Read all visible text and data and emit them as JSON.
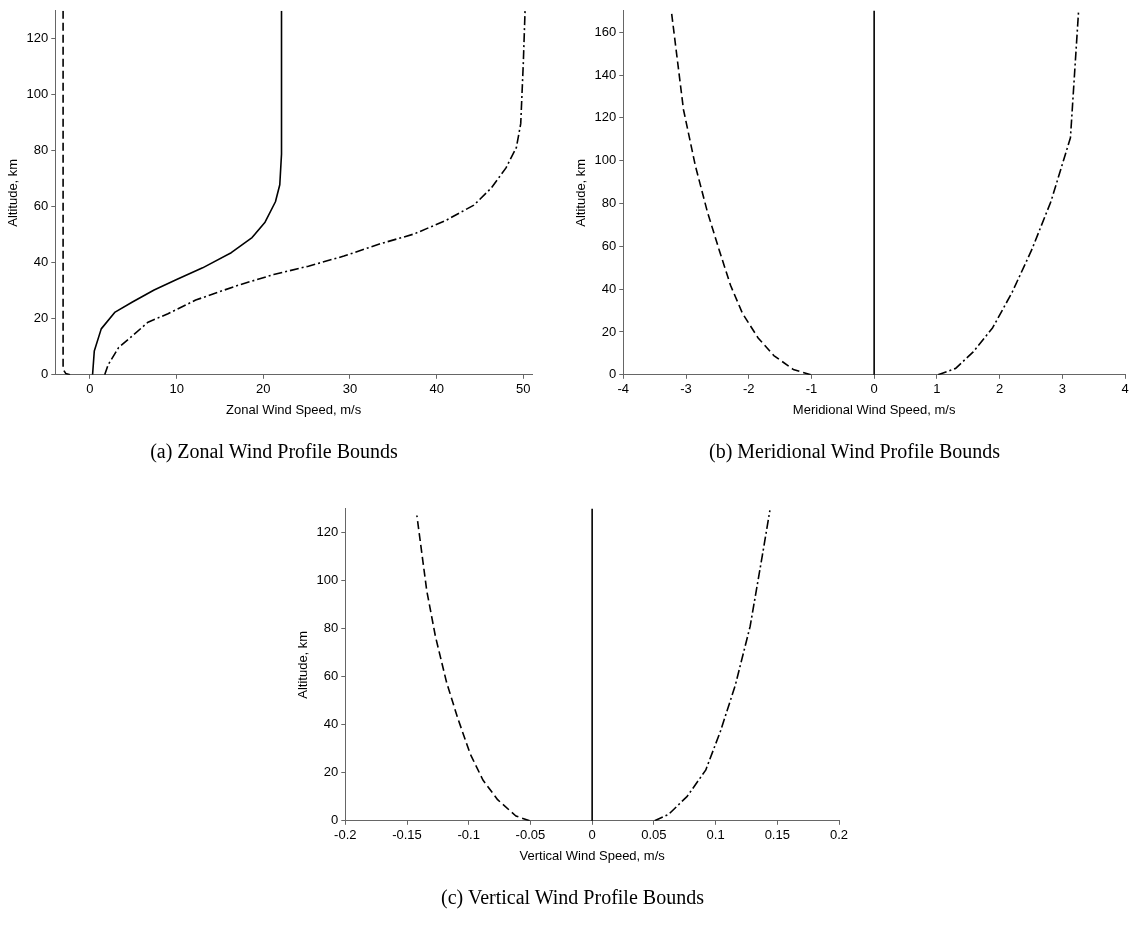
{
  "chart_data": [
    {
      "type": "line",
      "title": "(a) Zonal Wind Profile Bounds",
      "xlabel": "Zonal Wind Speed, m/s",
      "ylabel": "Altitude, km",
      "xlim": [
        -4,
        51
      ],
      "xticks": [
        0,
        10,
        20,
        30,
        40,
        50
      ],
      "ylim": [
        0,
        130
      ],
      "yticks": [
        0,
        20,
        40,
        60,
        80,
        100,
        120
      ],
      "grid": false,
      "legend": false,
      "marker": "none",
      "series": [
        {
          "color": "#000000",
          "line_style": "dashed",
          "x": [
            -3.1,
            -3.1,
            -2.8,
            -2.3
          ],
          "values": [
            130,
            2,
            0.5,
            0
          ]
        },
        {
          "color": "#000000",
          "line_style": "solid",
          "x": [
            0.3,
            0.5,
            1.3,
            2.9,
            4.9,
            7.4,
            10,
            13,
            16.3,
            18.7,
            20.2,
            21.4,
            21.9,
            22.1,
            22.1
          ],
          "values": [
            0,
            8.5,
            16.4,
            22.4,
            26,
            30.3,
            34,
            38.2,
            43.6,
            49,
            54.5,
            61.8,
            67.9,
            78.8,
            130
          ]
        },
        {
          "color": "#000000",
          "line_style": "dashdot",
          "x": [
            1.7,
            2.1,
            3.3,
            4.9,
            6.7,
            9,
            12.2,
            17.1,
            21.2,
            25.2,
            29.3,
            33.4,
            37.4,
            41.1,
            44.3,
            46.3,
            48,
            49.2,
            49.7,
            50,
            50.2
          ],
          "values": [
            0,
            3.6,
            9.7,
            13.9,
            18.8,
            21.8,
            26.7,
            32,
            35.8,
            38.8,
            42.4,
            46.7,
            50.3,
            55.2,
            60.6,
            66.7,
            73.9,
            81.2,
            89.7,
            111.5,
            130
          ]
        }
      ]
    },
    {
      "type": "line",
      "title": "(b) Meridional Wind Profile Bounds",
      "xlabel": "Meridional Wind Speed, m/s",
      "ylabel": "Altitude, km",
      "xlim": [
        -4,
        4
      ],
      "xticks": [
        -4,
        -3,
        -2,
        -1,
        0,
        1,
        2,
        3,
        4
      ],
      "ylim": [
        0,
        170
      ],
      "yticks": [
        0,
        20,
        40,
        60,
        80,
        100,
        120,
        140,
        160
      ],
      "grid": false,
      "ref_lines": [
        {
          "axis": "x",
          "value": 0,
          "color": "#000000",
          "line_style": "solid"
        }
      ],
      "legend": false,
      "marker": "none",
      "series": [
        {
          "color": "#000000",
          "line_style": "dashed",
          "x": [
            -1.01,
            -1.29,
            -1.6,
            -1.85,
            -2.1,
            -2.29,
            -2.47,
            -2.66,
            -2.85,
            -3.04,
            -3.23
          ],
          "values": [
            0,
            2.5,
            9,
            17.2,
            28.7,
            41.8,
            58.2,
            76.2,
            97.5,
            123.8,
            169
          ]
        },
        {
          "color": "#000000",
          "line_style": "dashdot",
          "x": [
            1.02,
            1.3,
            1.58,
            1.89,
            2.2,
            2.51,
            2.82,
            3.13,
            3.26
          ],
          "values": [
            0,
            3,
            10.7,
            22,
            38.5,
            58.2,
            81,
            110.7,
            170
          ]
        }
      ]
    },
    {
      "type": "line",
      "title": "(c) Vertical Wind Profile Bounds",
      "xlabel": "Vertical Wind Speed, m/s",
      "ylabel": "Altitude, km",
      "xlim": [
        -0.2,
        0.2
      ],
      "xticks": [
        -0.2,
        -0.15,
        -0.1,
        -0.05,
        0,
        0.05,
        0.1,
        0.15,
        0.2
      ],
      "ylim": [
        0,
        130
      ],
      "yticks": [
        0,
        20,
        40,
        60,
        80,
        100,
        120
      ],
      "grid": false,
      "ref_lines": [
        {
          "axis": "x",
          "value": 0,
          "color": "#000000",
          "line_style": "solid"
        }
      ],
      "legend": false,
      "marker": "none",
      "series": [
        {
          "color": "#000000",
          "line_style": "dashed",
          "x": [
            -0.0506,
            -0.0618,
            -0.0766,
            -0.0885,
            -0.0988,
            -0.109,
            -0.118,
            -0.127,
            -0.134,
            -0.142
          ],
          "values": [
            0,
            2,
            8.8,
            17,
            27.9,
            42.9,
            57.8,
            76.9,
            95.9,
            127.2
          ]
        },
        {
          "color": "#000000",
          "line_style": "dashdot",
          "x": [
            0.0506,
            0.062,
            0.077,
            0.092,
            0.104,
            0.116,
            0.128,
            0.138,
            0.144
          ],
          "values": [
            0,
            2.7,
            10.2,
            21.1,
            37.4,
            56.5,
            81,
            110.9,
            129.3
          ]
        }
      ]
    }
  ]
}
